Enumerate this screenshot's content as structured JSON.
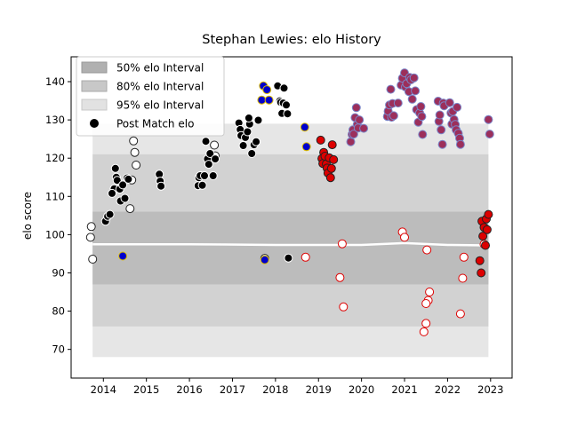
{
  "chart_data": {
    "type": "scatter",
    "title": "Stephan Lewies: elo History",
    "xlabel": "",
    "ylabel": "elo score",
    "xlim": [
      2013.25,
      2023.5
    ],
    "ylim": [
      62.5,
      146.5
    ],
    "x_ticks": [
      2014,
      2015,
      2016,
      2017,
      2018,
      2019,
      2020,
      2021,
      2022,
      2023
    ],
    "y_ticks": [
      70,
      80,
      90,
      100,
      110,
      120,
      130,
      140
    ],
    "legend": {
      "placement": "top-left",
      "entries": [
        "50% elo Interval",
        "80% elo Interval",
        "95% elo Interval",
        "Post Match elo"
      ]
    },
    "bands": [
      {
        "name": "95% elo Interval",
        "x0": 2013.75,
        "x1": 2022.95,
        "lower": 68,
        "upper": 129
      },
      {
        "name": "80% elo Interval",
        "x0": 2013.75,
        "x1": 2022.95,
        "lower": 76,
        "upper": 121
      },
      {
        "name": "50% elo Interval",
        "x0": 2013.75,
        "x1": 2022.95,
        "lower": 87,
        "upper": 106
      }
    ],
    "median_line": [
      {
        "x": 2013.75,
        "y": 97.5
      },
      {
        "x": 2016,
        "y": 97.5
      },
      {
        "x": 2018,
        "y": 97.3
      },
      {
        "x": 2020,
        "y": 97.3
      },
      {
        "x": 2021,
        "y": 97.8
      },
      {
        "x": 2022,
        "y": 97.3
      },
      {
        "x": 2022.95,
        "y": 97.2
      }
    ],
    "series": [
      {
        "fill": "#ffffff",
        "points": [
          [
            2013.72,
            102.1
          ],
          [
            2013.7,
            99.3
          ],
          [
            2013.75,
            93.6
          ],
          [
            2014.7,
            124.5
          ],
          [
            2014.73,
            121.5
          ],
          [
            2014.76,
            118.2
          ],
          [
            2014.66,
            114.3
          ],
          [
            2014.62,
            106.8
          ],
          [
            2016.58,
            123.4
          ],
          [
            2016.6,
            120.6
          ],
          [
            2017.75,
            93.8
          ],
          [
            2018.7,
            94.1
          ],
          [
            2019.55,
            97.6
          ],
          [
            2019.5,
            88.8
          ],
          [
            2019.58,
            81.1
          ],
          [
            2020.95,
            100.7
          ],
          [
            2021.0,
            99.3
          ],
          [
            2021.45,
            74.6
          ],
          [
            2021.5,
            76.8
          ],
          [
            2021.55,
            82.8
          ],
          [
            2021.58,
            85.0
          ],
          [
            2021.5,
            82.0
          ],
          [
            2021.52,
            96.0
          ],
          [
            2022.3,
            79.3
          ],
          [
            2022.35,
            88.6
          ],
          [
            2022.38,
            94.1
          ],
          [
            2022.85,
            97.5
          ]
        ]
      },
      {
        "fill": "#000000",
        "points": [
          [
            2014.05,
            103.5
          ],
          [
            2014.1,
            104.8
          ],
          [
            2014.15,
            105.3
          ],
          [
            2014.25,
            112.0
          ],
          [
            2014.28,
            117.3
          ],
          [
            2014.2,
            110.8
          ],
          [
            2014.3,
            115.0
          ],
          [
            2014.32,
            114.2
          ],
          [
            2014.38,
            111.9
          ],
          [
            2014.4,
            108.8
          ],
          [
            2014.45,
            113.0
          ],
          [
            2014.5,
            109.5
          ],
          [
            2014.55,
            114.8
          ],
          [
            2014.58,
            114.5
          ],
          [
            2015.3,
            115.8
          ],
          [
            2015.32,
            114.0
          ],
          [
            2015.34,
            112.7
          ],
          [
            2016.2,
            112.8
          ],
          [
            2016.22,
            114.9
          ],
          [
            2016.25,
            115.4
          ],
          [
            2016.3,
            112.9
          ],
          [
            2016.35,
            115.4
          ],
          [
            2016.38,
            124.4
          ],
          [
            2016.42,
            119.8
          ],
          [
            2016.45,
            118.4
          ],
          [
            2016.48,
            121.2
          ],
          [
            2016.55,
            115.4
          ],
          [
            2016.6,
            119.8
          ],
          [
            2017.15,
            129.2
          ],
          [
            2017.18,
            127.5
          ],
          [
            2017.2,
            125.9
          ],
          [
            2017.25,
            123.3
          ],
          [
            2017.3,
            125.4
          ],
          [
            2017.35,
            126.9
          ],
          [
            2017.4,
            128.9
          ],
          [
            2017.38,
            130.5
          ],
          [
            2017.45,
            121.2
          ],
          [
            2017.5,
            123.5
          ],
          [
            2017.55,
            124.3
          ],
          [
            2017.6,
            129.9
          ],
          [
            2018.05,
            138.9
          ],
          [
            2018.1,
            135.0
          ],
          [
            2018.12,
            134.6
          ],
          [
            2018.15,
            131.7
          ],
          [
            2018.18,
            134.4
          ],
          [
            2018.2,
            138.3
          ],
          [
            2018.25,
            133.9
          ],
          [
            2018.28,
            131.6
          ],
          [
            2018.3,
            93.9
          ]
        ]
      },
      {
        "fill": "#0000cc",
        "points": [
          [
            2014.45,
            94.4
          ],
          [
            2017.68,
            135.2
          ],
          [
            2017.72,
            138.9
          ],
          [
            2017.75,
            93.4
          ],
          [
            2017.8,
            137.9
          ],
          [
            2017.85,
            135.2
          ],
          [
            2018.68,
            128.1
          ],
          [
            2018.72,
            123.0
          ]
        ]
      },
      {
        "fill": "#dd0000",
        "points": [
          [
            2019.05,
            124.7
          ],
          [
            2019.08,
            119.9
          ],
          [
            2019.1,
            118.6
          ],
          [
            2019.12,
            121.5
          ],
          [
            2019.15,
            120.5
          ],
          [
            2019.18,
            118.5
          ],
          [
            2019.2,
            117.4
          ],
          [
            2019.22,
            116.1
          ],
          [
            2019.25,
            120.1
          ],
          [
            2019.28,
            114.9
          ],
          [
            2019.3,
            117.3
          ],
          [
            2019.32,
            123.5
          ],
          [
            2019.35,
            119.6
          ],
          [
            2022.75,
            93.2
          ],
          [
            2022.78,
            90.0
          ],
          [
            2022.8,
            103.5
          ],
          [
            2022.82,
            99.6
          ],
          [
            2022.85,
            101.9
          ],
          [
            2022.88,
            97.2
          ],
          [
            2022.9,
            104.1
          ],
          [
            2022.92,
            101.3
          ],
          [
            2022.95,
            105.3
          ]
        ]
      },
      {
        "fill": "#9c2f5b",
        "points": [
          [
            2019.75,
            124.3
          ],
          [
            2019.78,
            126.2
          ],
          [
            2019.8,
            127.4
          ],
          [
            2019.82,
            126.3
          ],
          [
            2019.85,
            130.6
          ],
          [
            2019.88,
            133.2
          ],
          [
            2019.9,
            128.8
          ],
          [
            2019.92,
            127.9
          ],
          [
            2019.95,
            130.0
          ],
          [
            2020.05,
            127.8
          ],
          [
            2020.6,
            130.9
          ],
          [
            2020.62,
            132.3
          ],
          [
            2020.65,
            133.9
          ],
          [
            2020.68,
            138.0
          ],
          [
            2020.7,
            130.7
          ],
          [
            2020.72,
            134.3
          ],
          [
            2020.75,
            131.1
          ],
          [
            2020.85,
            134.4
          ],
          [
            2020.92,
            139.1
          ],
          [
            2020.95,
            140.9
          ],
          [
            2021.0,
            142.3
          ],
          [
            2021.02,
            138.6
          ],
          [
            2021.05,
            139.5
          ],
          [
            2021.1,
            137.4
          ],
          [
            2021.12,
            141.1
          ],
          [
            2021.15,
            140.5
          ],
          [
            2021.18,
            135.4
          ],
          [
            2021.22,
            141.0
          ],
          [
            2021.25,
            137.6
          ],
          [
            2021.28,
            132.7
          ],
          [
            2021.32,
            129.4
          ],
          [
            2021.35,
            131.8
          ],
          [
            2021.38,
            133.5
          ],
          [
            2021.4,
            130.9
          ],
          [
            2021.42,
            126.2
          ],
          [
            2021.78,
            134.9
          ],
          [
            2021.8,
            129.6
          ],
          [
            2021.82,
            131.3
          ],
          [
            2021.85,
            127.4
          ],
          [
            2021.88,
            123.6
          ],
          [
            2021.9,
            134.4
          ],
          [
            2021.92,
            133.7
          ],
          [
            2022.05,
            134.5
          ],
          [
            2022.08,
            131.8
          ],
          [
            2022.1,
            128.9
          ],
          [
            2022.12,
            132.2
          ],
          [
            2022.15,
            130.1
          ],
          [
            2022.18,
            128.8
          ],
          [
            2022.2,
            127.4
          ],
          [
            2022.22,
            133.3
          ],
          [
            2022.25,
            126.5
          ],
          [
            2022.28,
            125.2
          ],
          [
            2022.3,
            123.6
          ],
          [
            2022.95,
            130.1
          ],
          [
            2022.98,
            126.3
          ]
        ]
      }
    ]
  }
}
